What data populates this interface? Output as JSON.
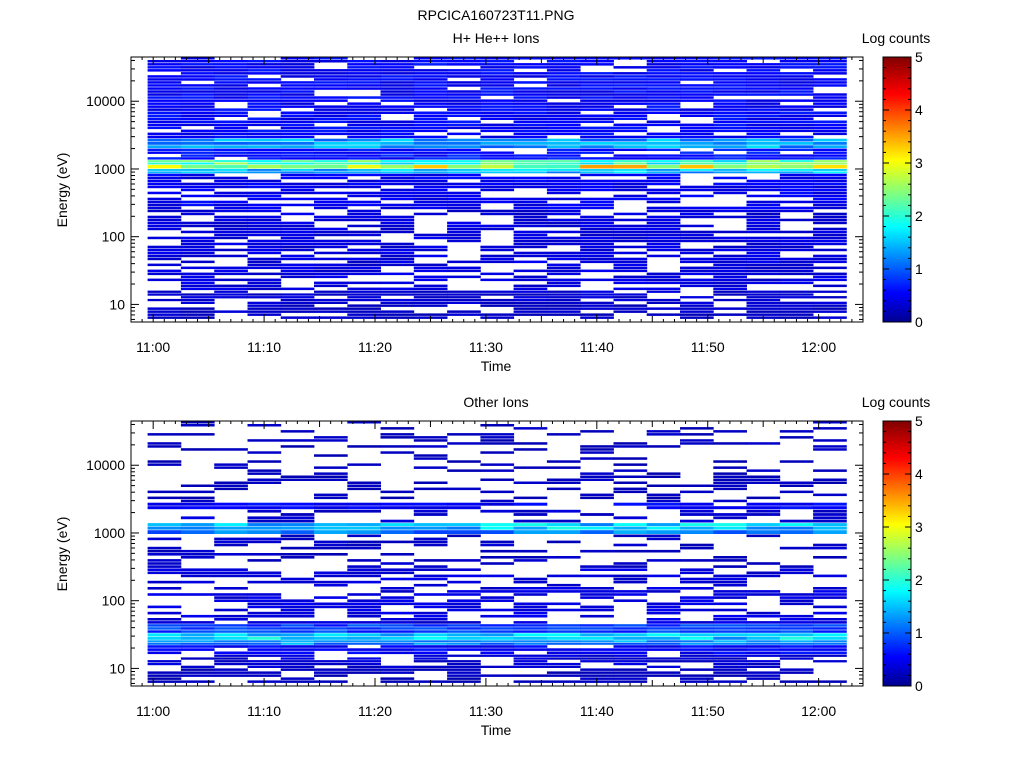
{
  "figure": {
    "title": "RPCICA160723T11.PNG"
  },
  "chart_data": [
    {
      "type": "heatmap",
      "id": "top",
      "title": "H+ He++ Ions",
      "xlabel": "Time",
      "ylabel": "Energy (eV)",
      "x_ticks": [
        "11:00",
        "11:10",
        "11:20",
        "11:30",
        "11:40",
        "11:50",
        "12:00"
      ],
      "x_range": [
        "10:58",
        "12:04"
      ],
      "y_scale": "log",
      "y_range": [
        5.5,
        45000
      ],
      "y_ticks": [
        "10",
        "100",
        "1000",
        "10000"
      ],
      "colorbar": {
        "label": "Log counts",
        "range": [
          0,
          5
        ],
        "ticks": [
          "0",
          "1",
          "2",
          "3",
          "4",
          "5"
        ]
      },
      "time_bins": [
        "11:01",
        "11:04",
        "11:07",
        "11:10",
        "11:13",
        "11:16",
        "11:19",
        "11:22",
        "11:25",
        "11:28",
        "11:31",
        "11:34",
        "11:37",
        "11:40",
        "11:43",
        "11:46",
        "11:49",
        "11:52",
        "11:55",
        "11:58",
        "12:01"
      ],
      "bands": [
        {
          "e_min": 6,
          "e_max": 10,
          "level": 0.35,
          "fill": 0.7
        },
        {
          "e_min": 10,
          "e_max": 16,
          "level": 0.4,
          "fill": 0.75
        },
        {
          "e_min": 16,
          "e_max": 40,
          "level": 0.45,
          "fill": 0.6
        },
        {
          "e_min": 40,
          "e_max": 250,
          "level": 0.45,
          "fill": 0.65
        },
        {
          "e_min": 250,
          "e_max": 850,
          "level": 0.55,
          "fill": 0.75
        },
        {
          "e_min": 850,
          "e_max": 1000,
          "level": 1.5,
          "fill": 1.0
        },
        {
          "e_min": 1000,
          "e_max": 1150,
          "level": 2.9,
          "fill": 1.0
        },
        {
          "e_min": 1150,
          "e_max": 1350,
          "level": 2.2,
          "fill": 1.0
        },
        {
          "e_min": 1350,
          "e_max": 2000,
          "level": 0.7,
          "fill": 0.9
        },
        {
          "e_min": 2000,
          "e_max": 2800,
          "level": 1.4,
          "fill": 1.0
        },
        {
          "e_min": 2800,
          "e_max": 45000,
          "level": 0.6,
          "fill": 0.85
        }
      ]
    },
    {
      "type": "heatmap",
      "id": "bottom",
      "title": "Other Ions",
      "xlabel": "Time",
      "ylabel": "Energy (eV)",
      "x_ticks": [
        "11:00",
        "11:10",
        "11:20",
        "11:30",
        "11:40",
        "11:50",
        "12:00"
      ],
      "x_range": [
        "10:58",
        "12:04"
      ],
      "y_scale": "log",
      "y_range": [
        5.5,
        45000
      ],
      "y_ticks": [
        "10",
        "100",
        "1000",
        "10000"
      ],
      "colorbar": {
        "label": "Log counts",
        "range": [
          0,
          5
        ],
        "ticks": [
          "0",
          "1",
          "2",
          "3",
          "4",
          "5"
        ]
      },
      "time_bins": [
        "11:01",
        "11:04",
        "11:07",
        "11:10",
        "11:13",
        "11:16",
        "11:19",
        "11:22",
        "11:25",
        "11:28",
        "11:31",
        "11:34",
        "11:37",
        "11:40",
        "11:43",
        "11:46",
        "11:49",
        "11:52",
        "11:55",
        "11:58",
        "12:01"
      ],
      "bands": [
        {
          "e_min": 6,
          "e_max": 10,
          "level": 0.3,
          "fill": 0.6
        },
        {
          "e_min": 10,
          "e_max": 16,
          "level": 0.4,
          "fill": 0.7
        },
        {
          "e_min": 16,
          "e_max": 22,
          "level": 0.6,
          "fill": 0.85
        },
        {
          "e_min": 22,
          "e_max": 26,
          "level": 1.3,
          "fill": 1.0
        },
        {
          "e_min": 26,
          "e_max": 33,
          "level": 1.7,
          "fill": 1.0
        },
        {
          "e_min": 33,
          "e_max": 45,
          "level": 0.9,
          "fill": 1.0
        },
        {
          "e_min": 45,
          "e_max": 300,
          "level": 0.45,
          "fill": 0.55
        },
        {
          "e_min": 300,
          "e_max": 950,
          "level": 0.35,
          "fill": 0.35
        },
        {
          "e_min": 950,
          "e_max": 1100,
          "level": 1.2,
          "fill": 1.0
        },
        {
          "e_min": 1100,
          "e_max": 1400,
          "level": 1.6,
          "fill": 1.0
        },
        {
          "e_min": 1400,
          "e_max": 2200,
          "level": 0.4,
          "fill": 0.4
        },
        {
          "e_min": 2200,
          "e_max": 2800,
          "level": 0.6,
          "fill": 0.8
        },
        {
          "e_min": 2800,
          "e_max": 45000,
          "level": 0.3,
          "fill": 0.25
        }
      ]
    }
  ]
}
